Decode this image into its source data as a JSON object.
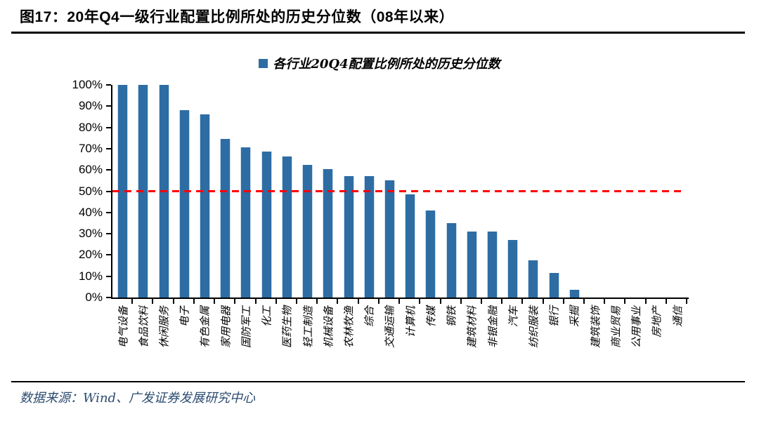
{
  "figure": {
    "title": "图17：20年Q4一级行业配置比例所处的历史分位数（08年以来）",
    "source": "数据来源：Wind、广发证券发展研究中心"
  },
  "colors": {
    "bar": "#2E6DA4",
    "bar_edge": "#C9DCEE",
    "reference_line": "#FF0000",
    "rule": "#000000",
    "source_text": "#2B4B6F"
  },
  "chart_data": {
    "type": "bar",
    "title": "各行业20Q4配置比例所处的历史分位数",
    "legend_position": "top-center",
    "grid": false,
    "ylim": [
      0,
      100
    ],
    "ytick_labels": [
      "100%",
      "90%",
      "80%",
      "70%",
      "60%",
      "50%",
      "40%",
      "30%",
      "20%",
      "10%",
      "0%"
    ],
    "yaxis_format": "percent",
    "reference_line": {
      "value": 50,
      "style": "dashed",
      "color": "#FF0000"
    },
    "categories": [
      "电气设备",
      "食品饮料",
      "休闲服务",
      "电子",
      "有色金属",
      "家用电器",
      "国防军工",
      "化工",
      "医药生物",
      "轻工制造",
      "机械设备",
      "农林牧渔",
      "综合",
      "交通运输",
      "计算机",
      "传媒",
      "钢铁",
      "建筑材料",
      "非银金融",
      "汽车",
      "纺织服装",
      "银行",
      "采掘",
      "建筑装饰",
      "商业贸易",
      "公用事业",
      "房地产",
      "通信"
    ],
    "values": [
      100,
      100,
      100,
      88,
      86,
      74.5,
      70.5,
      68.5,
      66.5,
      62.5,
      60.5,
      57,
      57,
      55,
      48.5,
      41,
      35,
      31,
      31,
      27,
      17.5,
      11.5,
      3.5,
      0,
      0,
      0,
      0,
      0
    ]
  }
}
